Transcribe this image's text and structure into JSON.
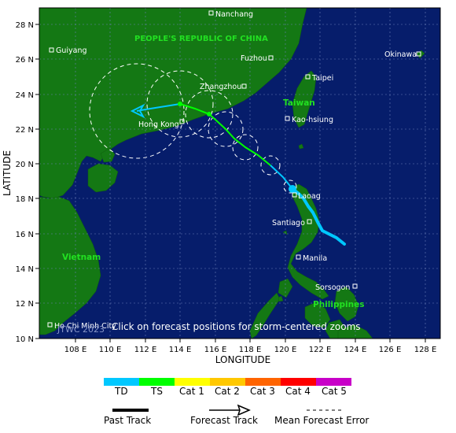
{
  "map": {
    "axes": {
      "y_label": "LATITUDE",
      "x_label": "LONGITUDE",
      "lat_ticks": [
        "28 N",
        "26 N",
        "24 N",
        "22 N",
        "20 N",
        "18 N",
        "16 N",
        "14 N",
        "12 N",
        "10 N"
      ],
      "lon_ticks": [
        "108 E",
        "110 E",
        "112 E",
        "114 E",
        "116 E",
        "118 E",
        "120 E",
        "122 E",
        "124 E",
        "126 E",
        "128 E"
      ]
    },
    "regions": {
      "china": "PEOPLE'S REPUBLIC OF CHINA",
      "taiwan": "Taiwan",
      "vietnam": "Vietnam",
      "philippines": "Philippines"
    },
    "cities": [
      "Nanchang",
      "Guiyang",
      "Fuzhou",
      "Okinawa",
      "Zhangzhou",
      "Taipei",
      "Hong Kong",
      "Kao-hsiung",
      "Laoag",
      "Santiago",
      "Manila",
      "Sorsogon",
      "Ho Chi Minh City"
    ],
    "notice": "Click on forecast positions for storm-centered zooms",
    "copyright": "JTWC 2023"
  },
  "legend": {
    "categories": [
      {
        "label": "TD",
        "color": "#00c8ff"
      },
      {
        "label": "TS",
        "color": "#00ff00"
      },
      {
        "label": "Cat 1",
        "color": "#ffff00"
      },
      {
        "label": "Cat 2",
        "color": "#ffc800"
      },
      {
        "label": "Cat 3",
        "color": "#ff6400"
      },
      {
        "label": "Cat 4",
        "color": "#ff0000"
      },
      {
        "label": "Cat 5",
        "color": "#c800c8"
      }
    ],
    "past_track": "Past Track",
    "forecast_track": "Forecast Track",
    "mean_error": "Mean Forecast Error"
  },
  "colors": {
    "ocean": "#061d6b",
    "land": "#147814",
    "grid": "#6a7fb8",
    "region_label": "#22e022"
  }
}
